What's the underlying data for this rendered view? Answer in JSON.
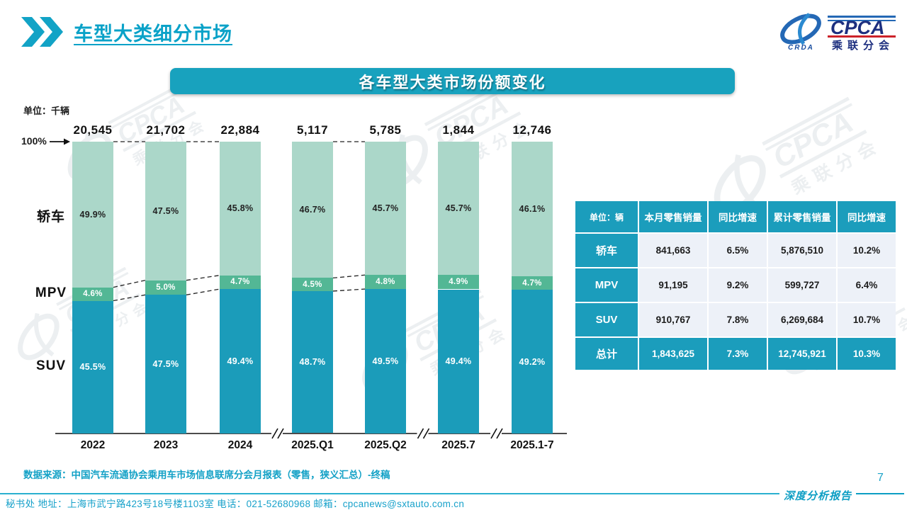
{
  "page": {
    "title": "车型大类细分市场",
    "page_number": "7",
    "report_tag": "深度分析报告",
    "footer": "秘书处  地址：上海市武宁路423号18号楼1103室 电话：021-52680968   邮箱：cpcanews@sxtauto.com.cn",
    "source": "数据来源：中国汽车流通协会乘用车市场信息联席分会月报表（零售，狭义汇总）-终稿"
  },
  "logo": {
    "cpca": "CPCA",
    "crda": "CRDA",
    "sub": "乘联分会"
  },
  "banner": {
    "title": "各车型大类市场份额变化"
  },
  "chart_data": {
    "type": "bar",
    "stacked": true,
    "unit_label": "单位：千辆",
    "axis_top_label": "100%",
    "categories": [
      "2022",
      "2023",
      "2024",
      "2025.Q1",
      "2025.Q2",
      "2025.7",
      "2025.1-7"
    ],
    "totals": [
      "20,545",
      "21,702",
      "22,884",
      "5,117",
      "5,785",
      "1,844",
      "12,746"
    ],
    "series": [
      {
        "name": "轿车",
        "color": "#abd7c9",
        "text_color": "#222222",
        "values": [
          49.9,
          47.5,
          45.8,
          46.7,
          45.7,
          45.7,
          46.1
        ]
      },
      {
        "name": "MPV",
        "color": "#53b795",
        "text_color": "#ffffff",
        "values": [
          4.6,
          5.0,
          4.7,
          4.5,
          4.8,
          4.9,
          4.7
        ]
      },
      {
        "name": "SUV",
        "color": "#1b9cba",
        "text_color": "#ffffff",
        "values": [
          45.5,
          47.5,
          49.4,
          48.7,
          49.5,
          49.4,
          49.2
        ]
      }
    ],
    "value_suffix": "%",
    "linked_pairs": [
      [
        0,
        1
      ],
      [
        1,
        2
      ],
      [
        3,
        4
      ]
    ],
    "axis_breaks_after": [
      2,
      4,
      5
    ],
    "ylim": [
      0,
      100
    ],
    "legend_position": "left-category-labels",
    "grid": false
  },
  "table": {
    "header": [
      "单位：辆",
      "本月零售销量",
      "同比增速",
      "累计零售销量",
      "同比增速"
    ],
    "rows": [
      {
        "label": "轿车",
        "cells": [
          "841,663",
          "6.5%",
          "5,876,510",
          "10.2%"
        ],
        "is_total": false
      },
      {
        "label": "MPV",
        "cells": [
          "91,195",
          "9.2%",
          "599,727",
          "6.4%"
        ],
        "is_total": false
      },
      {
        "label": "SUV",
        "cells": [
          "910,767",
          "7.8%",
          "6,269,684",
          "10.7%"
        ],
        "is_total": false
      },
      {
        "label": "总计",
        "cells": [
          "1,843,625",
          "7.3%",
          "12,745,921",
          "10.3%"
        ],
        "is_total": true
      }
    ]
  },
  "colors": {
    "accent": "#12a0c4",
    "banner": "#18a2be",
    "table_header": "#1b9dbc",
    "cell_bg": "#edf1f8",
    "sedan": "#abd7c9",
    "mpv": "#53b795",
    "suv": "#1b9cba"
  }
}
